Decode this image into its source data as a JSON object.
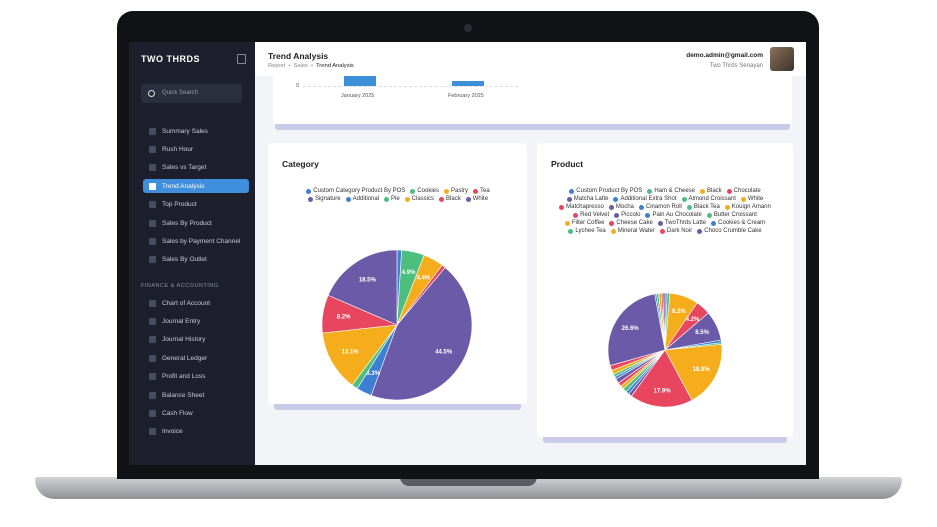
{
  "sidebar": {
    "brand": "TWO THRDS",
    "search": "Quick Search",
    "menu": [
      "Summary Sales",
      "Rush Hour",
      "Sales vs Target",
      "Trend Analysis",
      "Top Product",
      "Sales By Product",
      "Sales by Payment Channel",
      "Sales By Outlet"
    ],
    "section": "FINANCE & ACCOUNTING",
    "finance": [
      "Chart of Account",
      "Journal Entry",
      "Journal History",
      "General Ledger",
      "Profit and Loss",
      "Balance Sheet",
      "Cash Flow",
      "Invoice"
    ]
  },
  "header": {
    "title": "Trend Analysis",
    "breadcrumb": [
      "Report",
      "Sales",
      "Trend Analysis"
    ],
    "user": "demo.admin@gmail.com",
    "outlet": "Two Thrds Senayan"
  },
  "top_chart": {
    "yticks": [
      0
    ],
    "categories": [
      "January 2025",
      "February 2025"
    ]
  },
  "chart_data": [
    {
      "type": "pie",
      "title": "Category",
      "colors": [
        "#3d7fd3",
        "#4cbf7f",
        "#f5ad1c",
        "#e8455e",
        "#6b5aa8"
      ],
      "labels": [
        "Custom Category Product By POS",
        "Cookies",
        "Pastry",
        "Tea",
        "Signature",
        "Additional",
        "Pie",
        "Classics",
        "Black",
        "White"
      ],
      "values": [
        1.0,
        4.9,
        4.4,
        0.8,
        44.5,
        3.3,
        1.3,
        13.1,
        8.2,
        18.5
      ],
      "value_labels": [
        null,
        "4.9%",
        "4.4%",
        null,
        "44.5%",
        "3.3%",
        null,
        "13.1%",
        "8.2%",
        "18.5%"
      ]
    },
    {
      "type": "pie",
      "title": "Product",
      "colors": [
        "#3d7fd3",
        "#4cbf7f",
        "#f5ad1c",
        "#e8455e",
        "#6b5aa8"
      ],
      "labels": [
        "Custom Product By POS",
        "Ham & Cheese",
        "Black",
        "Chocolate",
        "Matcha Latte",
        "Additional Extra Shot",
        "Almond Croissant",
        "White",
        "Matchapresso",
        "Mocha",
        "Cinamon Roll",
        "Black Tea",
        "Kouign Amann",
        "Red Velvet",
        "Piccolo",
        "Pain Au Chocolate",
        "Butter Croissant",
        "Filter Coffee",
        "Cheese Cake",
        "TwoThrds Latte",
        "Cookies & Cream",
        "Lychee Tea",
        "Mineral Water",
        "Dark Noir",
        "Choco Crumble Cake"
      ],
      "values": [
        0.6,
        0.8,
        8.2,
        4.2,
        8.5,
        0.7,
        0.5,
        18.8,
        17.9,
        1.0,
        0.9,
        1.2,
        1.0,
        1.1,
        1.3,
        0.7,
        0.8,
        1.2,
        1.4,
        26.6,
        0.5,
        0.6,
        0.7,
        0.5,
        0.6
      ],
      "value_labels": [
        null,
        null,
        "8.2%",
        "4.2%",
        "8.5%",
        null,
        null,
        "18.8%",
        "17.9%",
        null,
        null,
        null,
        null,
        null,
        null,
        null,
        null,
        null,
        null,
        "26.6%",
        null,
        null,
        null,
        null,
        null
      ]
    }
  ]
}
